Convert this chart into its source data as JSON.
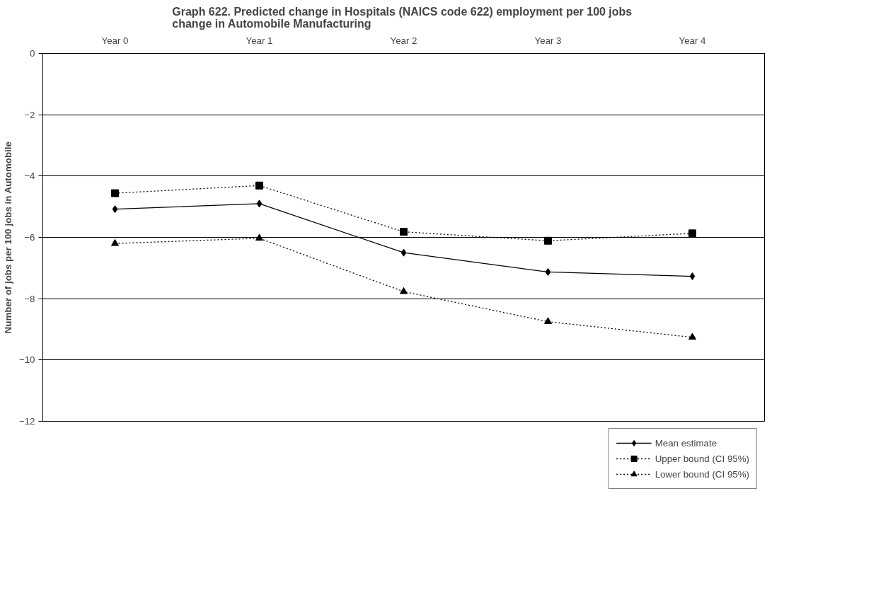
{
  "chart_data": {
    "type": "line",
    "title": "Graph 622.  Predicted change in Hospitals (NAICS code 622) employment per 100 jobs\nchange in Automobile Manufacturing",
    "ylabel": "Number of jobs per 100 jobs in Automobile",
    "categories": [
      "Year 0",
      "Year 1",
      "Year 2",
      "Year 3",
      "Year 4"
    ],
    "series": [
      {
        "name": "Mean estimate",
        "color": "#000000",
        "marker": "diamond",
        "line_style": "solid",
        "values": [
          -5.08,
          -4.9,
          -6.5,
          -7.13,
          -7.27
        ]
      },
      {
        "name": "Upper bound (CI 95%)",
        "color": "#000000",
        "marker": "square",
        "line_style": "dotted",
        "values": [
          -4.56,
          -4.31,
          -5.82,
          -6.11,
          -5.87
        ]
      },
      {
        "name": "Lower bound (CI 95%)",
        "color": "#000000",
        "marker": "triangle",
        "line_style": "dotted",
        "values": [
          -6.2,
          -6.03,
          -7.77,
          -8.75,
          -9.26
        ]
      }
    ],
    "ylim": [
      -12,
      0
    ],
    "yticks": [
      -12,
      -10,
      -8,
      -6,
      -4,
      -2,
      0
    ],
    "grid": "y",
    "legend": "bottom"
  }
}
